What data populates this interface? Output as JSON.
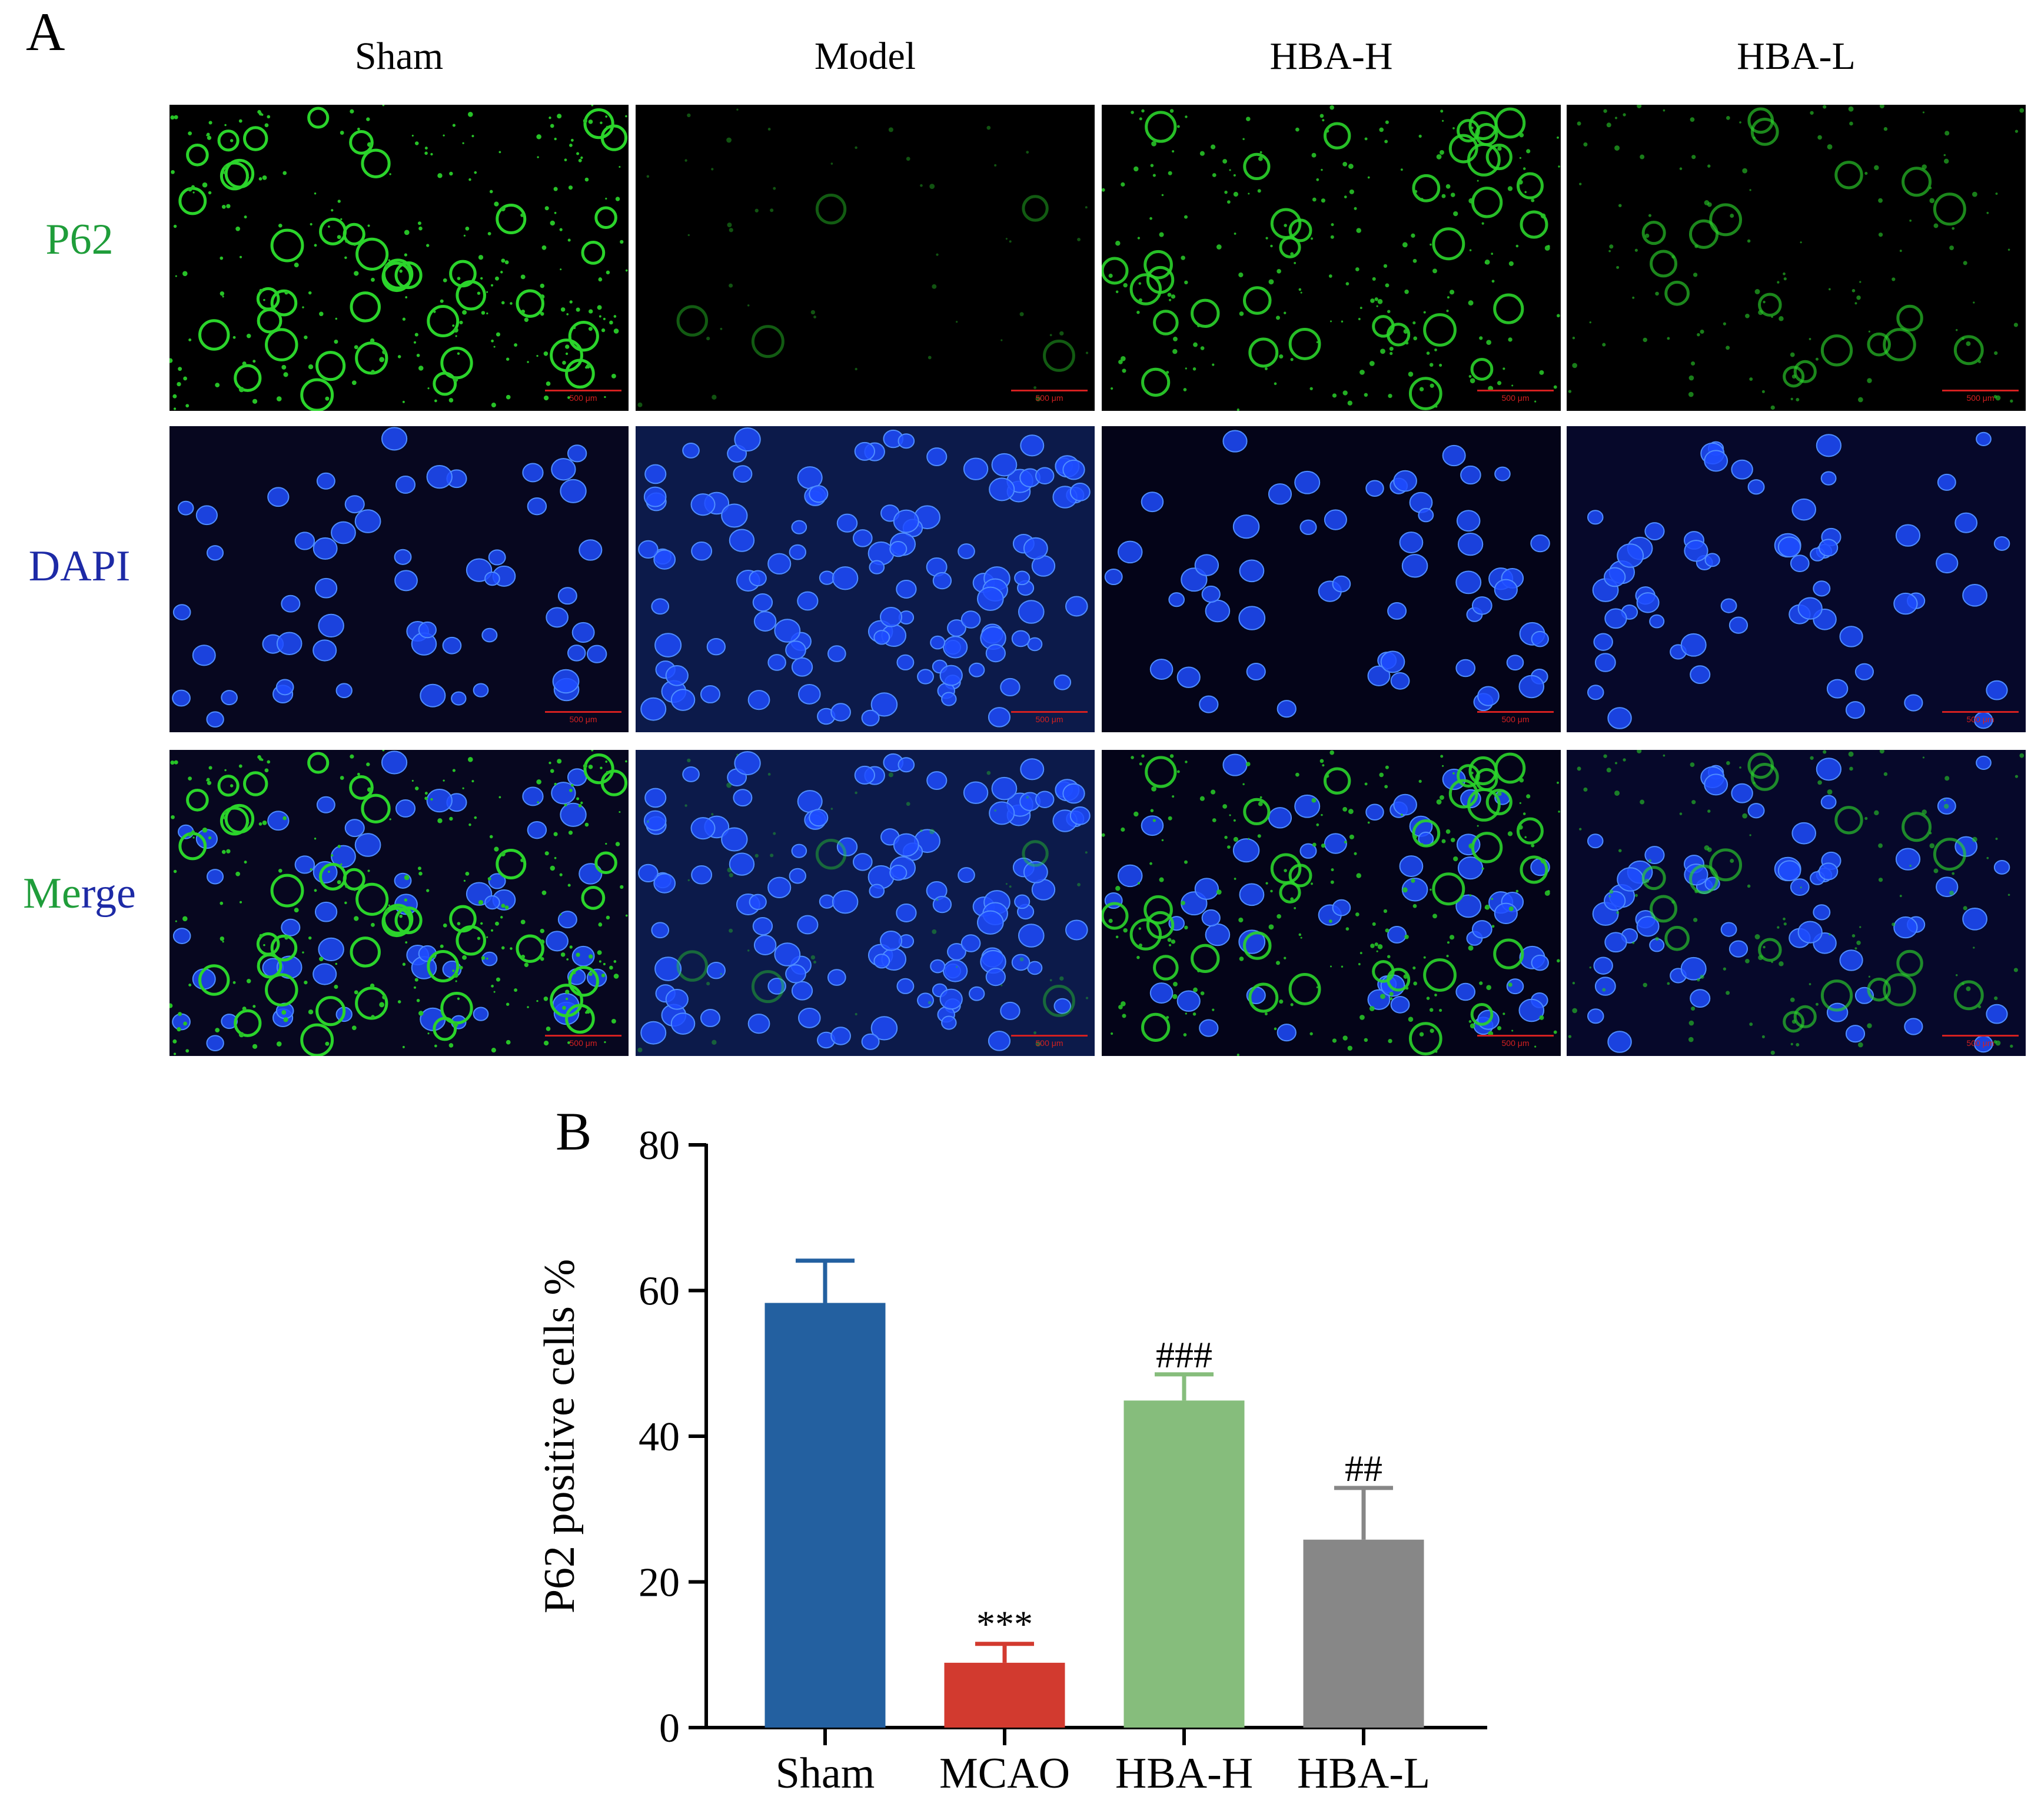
{
  "figure": {
    "panel_a_label": "A",
    "panel_b_label": "B",
    "columns": [
      "Sham",
      "Model",
      "HBA-H",
      "HBA-L"
    ],
    "rows": [
      {
        "label": "P62",
        "color": "#1f9d3a"
      },
      {
        "label": "DAPI",
        "color": "#1d2aa6"
      },
      {
        "label": "Merge",
        "label_start": "Me",
        "label_end": "rge",
        "color_start": "#1f9d3a",
        "color_end": "#1d2aa6"
      }
    ],
    "scale_bar_text": "500 μm"
  },
  "chart_data": {
    "type": "bar",
    "categories": [
      "Sham",
      "MCAO",
      "HBA-H",
      "HBA-L"
    ],
    "values": [
      58.3,
      8.9,
      44.9,
      25.8
    ],
    "errors": [
      5.8,
      2.6,
      3.6,
      7.1
    ],
    "colors": [
      "#2360a0",
      "#d23a2f",
      "#86bd7c",
      "#878787"
    ],
    "annotations": [
      "",
      "***",
      "###",
      "##"
    ],
    "ylabel": "P62 positive cells %",
    "ylim": [
      0,
      80
    ],
    "yticks": [
      0,
      20,
      40,
      60,
      80
    ],
    "grid": false
  }
}
